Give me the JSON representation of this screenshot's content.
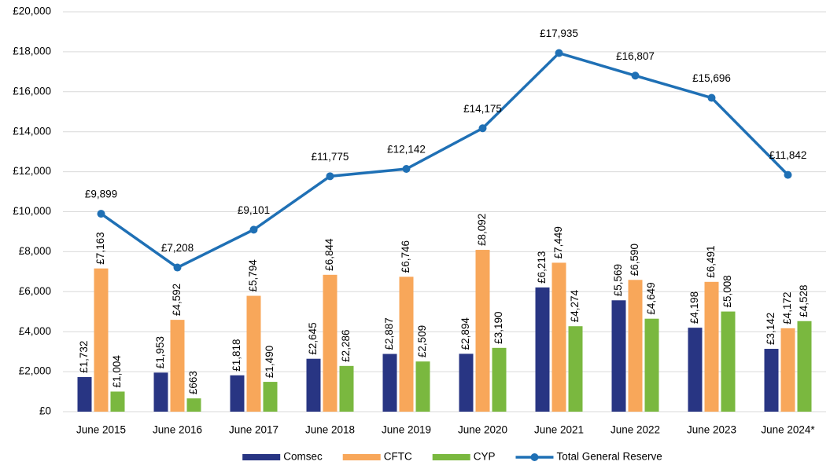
{
  "chart_data": {
    "type": "bar",
    "categories": [
      "June 2015",
      "June 2016",
      "June 2017",
      "June 2018",
      "June 2019",
      "June 2020",
      "June 2021",
      "June 2022",
      "June 2023",
      "June 2024*"
    ],
    "series": [
      {
        "name": "Comsec",
        "color": "#283583",
        "values": [
          1732,
          1953,
          1818,
          2645,
          2887,
          2894,
          6213,
          5569,
          4198,
          3142
        ],
        "value_labels": [
          "£1,732",
          "£1,953",
          "£1,818",
          "£2,645",
          "£2,887",
          "£2,894",
          "£6,213",
          "£5,569",
          "£4,198",
          "£3,142"
        ]
      },
      {
        "name": "CFTC",
        "color": "#f8a75a",
        "values": [
          7163,
          4592,
          5794,
          6844,
          6746,
          8092,
          7449,
          6590,
          6491,
          4172
        ],
        "value_labels": [
          "£7,163",
          "£4,592",
          "£5,794",
          "£6,844",
          "£6,746",
          "£8,092",
          "£7,449",
          "£6,590",
          "£6,491",
          "£4,172"
        ]
      },
      {
        "name": "CYP",
        "color": "#7ab83f",
        "values": [
          1004,
          663,
          1490,
          2286,
          2509,
          3190,
          4274,
          4649,
          5008,
          4528
        ],
        "value_labels": [
          "£1,004",
          "£663",
          "£1,490",
          "£2,286",
          "£2,509",
          "£3,190",
          "£4,274",
          "£4,649",
          "£5,008",
          "£4,528"
        ]
      },
      {
        "name": "Total General Reserve",
        "type": "line",
        "color": "#1f70b5",
        "values": [
          9899,
          7208,
          9101,
          11775,
          12142,
          14175,
          17935,
          16807,
          15696,
          11842
        ],
        "value_labels": [
          "£9,899",
          "£7,208",
          "£9,101",
          "£11,775",
          "£12,142",
          "£14,175",
          "£17,935",
          "£16,807",
          "£15,696",
          "£11,842"
        ]
      }
    ],
    "ylim": [
      0,
      20000
    ],
    "yticks": [
      {
        "value": 0,
        "label": "£0"
      },
      {
        "value": 2000,
        "label": "£2,000"
      },
      {
        "value": 4000,
        "label": "£4,000"
      },
      {
        "value": 6000,
        "label": "£6,000"
      },
      {
        "value": 8000,
        "label": "£8,000"
      },
      {
        "value": 10000,
        "label": "£10,000"
      },
      {
        "value": 12000,
        "label": "£12,000"
      },
      {
        "value": 14000,
        "label": "£14,000"
      },
      {
        "value": 16000,
        "label": "£16,000"
      },
      {
        "value": 18000,
        "label": "£18,000"
      },
      {
        "value": 20000,
        "label": "£20,000"
      }
    ],
    "grid": true,
    "legend": "bottom"
  }
}
